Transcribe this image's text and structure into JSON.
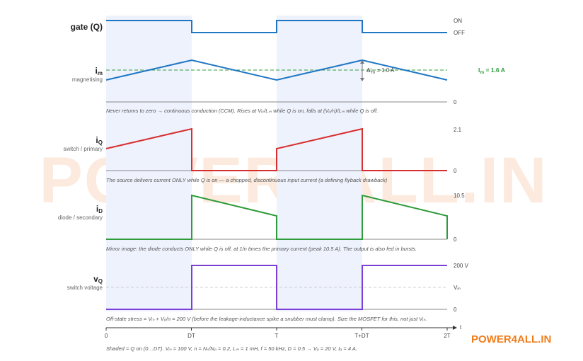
{
  "panels": [
    {
      "key": "gate",
      "label": "gate (Q)",
      "sub": "",
      "right_top": "ON",
      "right_bottom": "OFF",
      "note": ""
    },
    {
      "key": "im",
      "label_main": "i",
      "label_subscript": "m",
      "sub": "magnetising",
      "right_bottom": "0",
      "level_label": "I",
      "level_subscript": "m",
      "level_value": " = 1.6 A",
      "delta_label": "Δi",
      "delta_subscript": "m",
      "delta_value": " = 1.0 A",
      "note": "Never returns to zero → continuous conduction (CCM). Rises at Vᵢₙ/Lₘ while Q is on, falls at (Vₒ/n)/Lₘ while Q is off."
    },
    {
      "key": "iq",
      "label_main": "i",
      "label_subscript": "Q",
      "sub": "switch / primary",
      "right_top": "2.1",
      "right_bottom": "0",
      "note": "The source delivers current ONLY while Q is on — a chopped, discontinuous input current (a defining flyback drawback)"
    },
    {
      "key": "id",
      "label_main": "i",
      "label_subscript": "D",
      "sub": "diode / secondary",
      "right_top": "10.5",
      "right_bottom": "0",
      "note": "Mirror image: the diode conducts ONLY while Q is off, at 1/n times the primary current (peak 10.5 A). The output is also fed in bursts."
    },
    {
      "key": "vq",
      "label_main": "v",
      "label_subscript": "Q",
      "sub": "switch voltage",
      "right_top": "200 V",
      "right_mid": "Vᵢₙ",
      "right_bottom": "0",
      "note": "Off-state stress = Vᵢₙ + Vₒ/n = 200 V (before the leakage-inductance spike a snubber must clamp). Size the MOSFET for this, not just Vᵢₙ."
    }
  ],
  "time_axis": {
    "ticks": [
      "0",
      "DT",
      "T",
      "T+DT",
      "2T"
    ],
    "unit": "t"
  },
  "footer": "Shaded = Q on (0…DT). Vᵢₙ = 100 V, n = Nₛ/Nₚ = 0.2, Lₘ = 1 mH, f = 50 kHz, D = 0.5 → Vₒ = 20 V, Iₒ = 4 A.",
  "watermark": "POWER4ALL.IN",
  "brand": "POWER4ALL.IN",
  "chart_data": {
    "type": "line",
    "x": [
      0,
      0.5,
      1,
      1.5,
      2
    ],
    "x_tick_labels": [
      "0",
      "DT",
      "T",
      "T+DT",
      "2T"
    ],
    "series": [
      {
        "name": "gate (Q)",
        "values": [
          1,
          0,
          1,
          0,
          0
        ],
        "color": "#1f77c4"
      },
      {
        "name": "i_m",
        "values": [
          1.1,
          2.1,
          1.1,
          2.1,
          1.1
        ],
        "unit": "A",
        "color": "#1f77c4"
      },
      {
        "name": "i_Q",
        "values": [
          1.1,
          2.1,
          1.1,
          2.1,
          0
        ],
        "unit": "A",
        "color": "#d62f2f"
      },
      {
        "name": "i_D",
        "values": [
          0,
          10.5,
          5.5,
          10.5,
          5.5
        ],
        "unit": "A",
        "color": "#2e9c3a"
      },
      {
        "name": "v_Q",
        "values": [
          0,
          200,
          0,
          200,
          200
        ],
        "unit": "V",
        "color": "#7b3fd6"
      }
    ],
    "reference_lines": [
      {
        "name": "I_m",
        "value": 1.6,
        "unit": "A",
        "color": "#2e9c3a"
      }
    ],
    "ranges": {
      "i_Q": [
        0,
        2.1
      ],
      "i_D": [
        0,
        10.5
      ],
      "v_Q": [
        0,
        200
      ]
    }
  }
}
